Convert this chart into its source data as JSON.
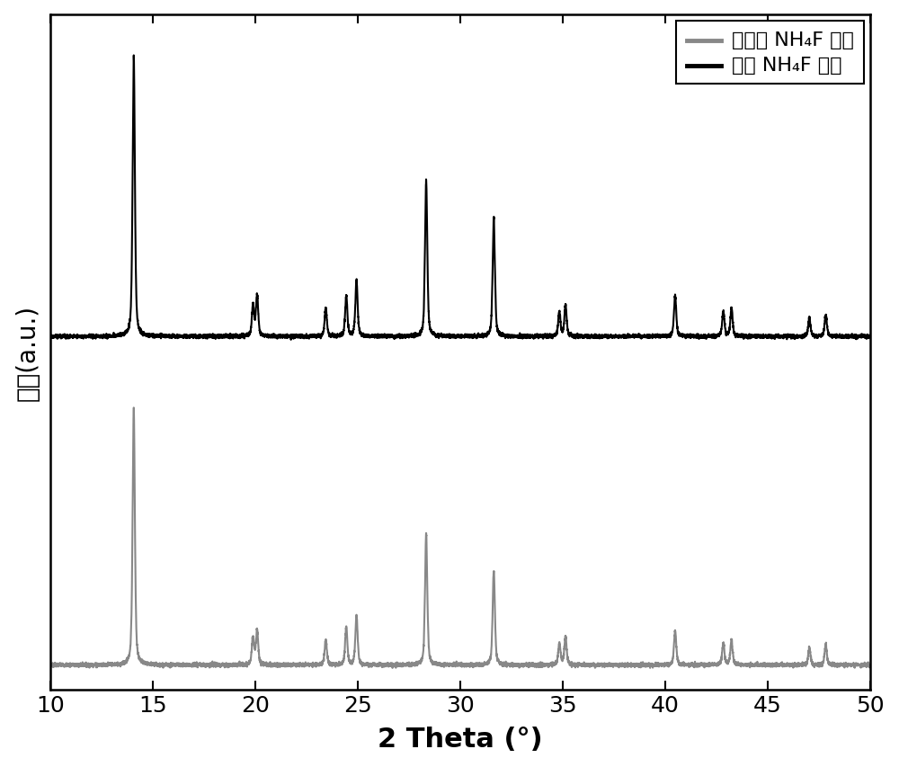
{
  "xmin": 10,
  "xmax": 50,
  "xlabel": "2 Theta (°)",
  "ylabel": "强度(a.u.)",
  "xticks": [
    10,
    15,
    20,
    25,
    30,
    35,
    40,
    45,
    50
  ],
  "legend_labels_gray": "未使用 NH₄F 处理",
  "legend_labels_black": "使用 NH₄F 处理",
  "legend_color_gray": "#888888",
  "legend_color_black": "#000000",
  "peaks": {
    "positions": [
      14.08,
      19.9,
      20.1,
      23.45,
      24.45,
      24.95,
      28.35,
      31.65,
      34.85,
      35.15,
      40.5,
      42.85,
      43.25,
      47.05,
      47.85
    ],
    "gray_heights": [
      0.82,
      0.09,
      0.11,
      0.08,
      0.12,
      0.16,
      0.42,
      0.3,
      0.07,
      0.09,
      0.11,
      0.07,
      0.08,
      0.055,
      0.065
    ],
    "black_heights": [
      0.9,
      0.1,
      0.13,
      0.09,
      0.13,
      0.18,
      0.5,
      0.38,
      0.08,
      0.1,
      0.13,
      0.08,
      0.09,
      0.06,
      0.07
    ],
    "widths": [
      0.13,
      0.13,
      0.13,
      0.13,
      0.13,
      0.13,
      0.13,
      0.13,
      0.13,
      0.13,
      0.13,
      0.13,
      0.13,
      0.13,
      0.13
    ]
  },
  "gray_baseline": 0.0,
  "black_baseline": 1.05,
  "gray_scale": 1.0,
  "black_scale": 1.0,
  "noise_amplitude": 0.003,
  "line_width": 1.5,
  "figsize": [
    10.0,
    8.54
  ],
  "dpi": 100
}
